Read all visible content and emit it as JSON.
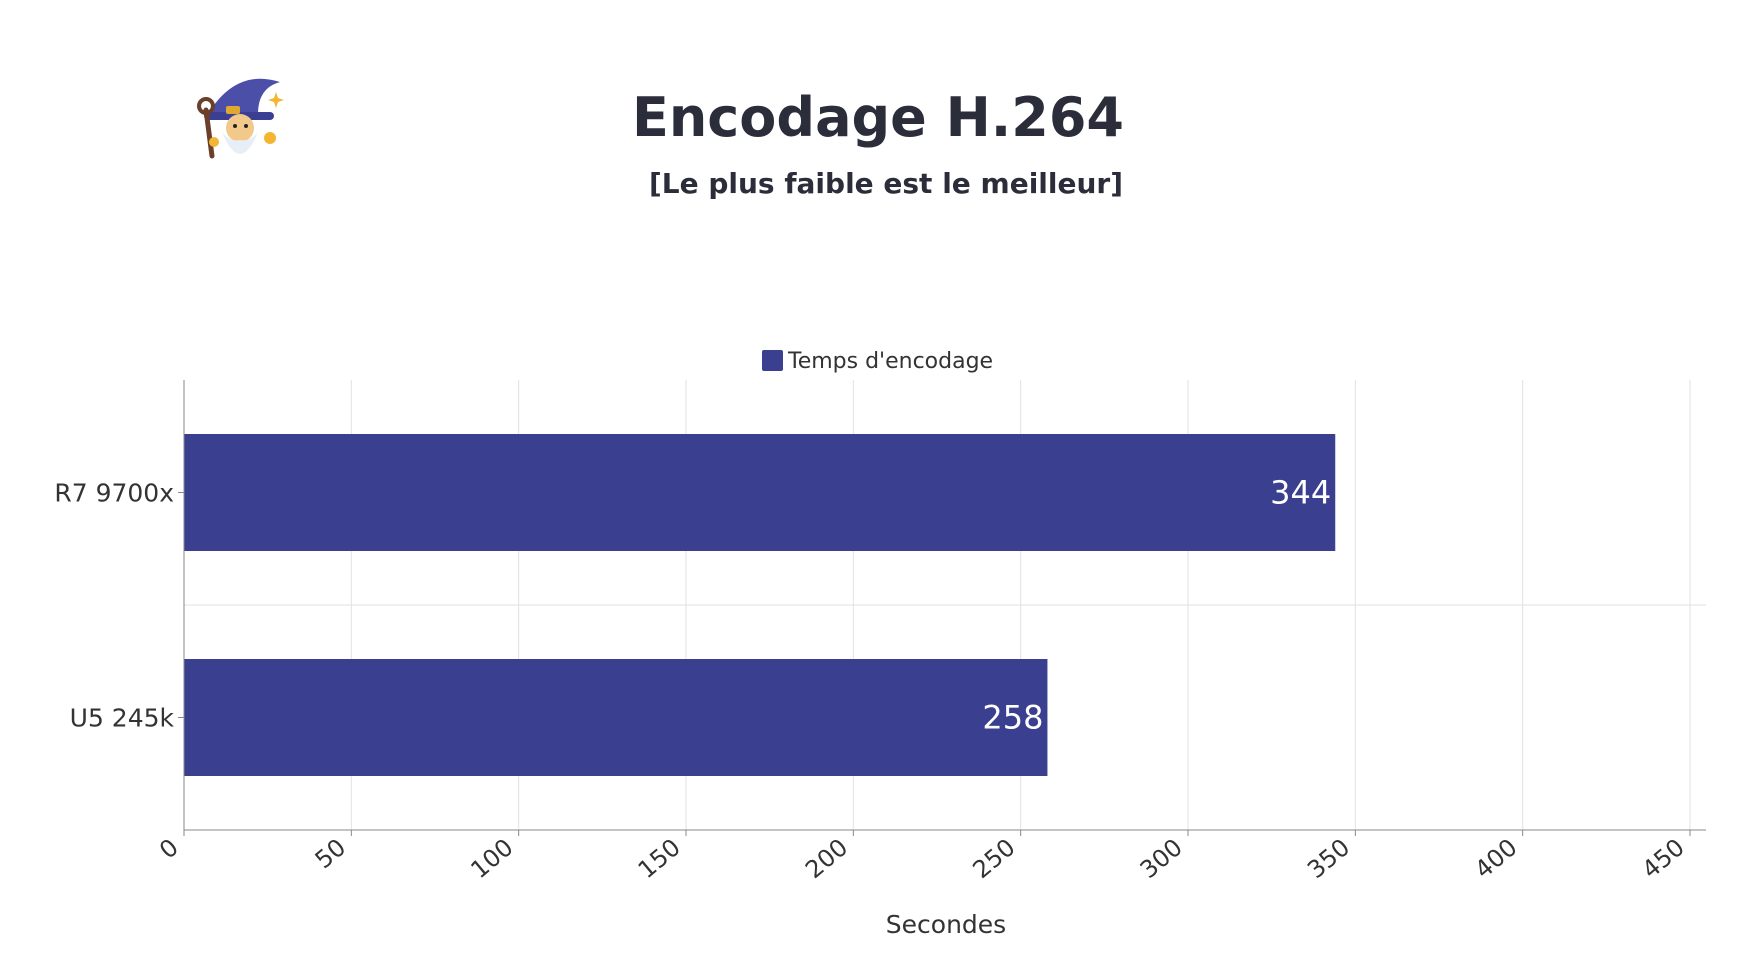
{
  "title": "Encodage H.264",
  "subtitle": "[Le plus faible est le meilleur]",
  "logo_icon": "wizard-icon",
  "colors": {
    "bar": "#3a3f8f",
    "grid": "#e2e2e2",
    "axis": "#888888",
    "text": "#333333"
  },
  "chart_data": {
    "type": "bar",
    "orientation": "horizontal",
    "categories": [
      "R7 9700x",
      "U5 245k"
    ],
    "series": [
      {
        "name": "Temps d'encodage",
        "values": [
          344,
          258
        ]
      }
    ],
    "xlabel": "Secondes",
    "ylabel": "",
    "xlim": [
      0,
      450
    ],
    "xticks": [
      0,
      50,
      100,
      150,
      200,
      250,
      300,
      350,
      400,
      450
    ],
    "grid": true,
    "legend": "top-center"
  }
}
